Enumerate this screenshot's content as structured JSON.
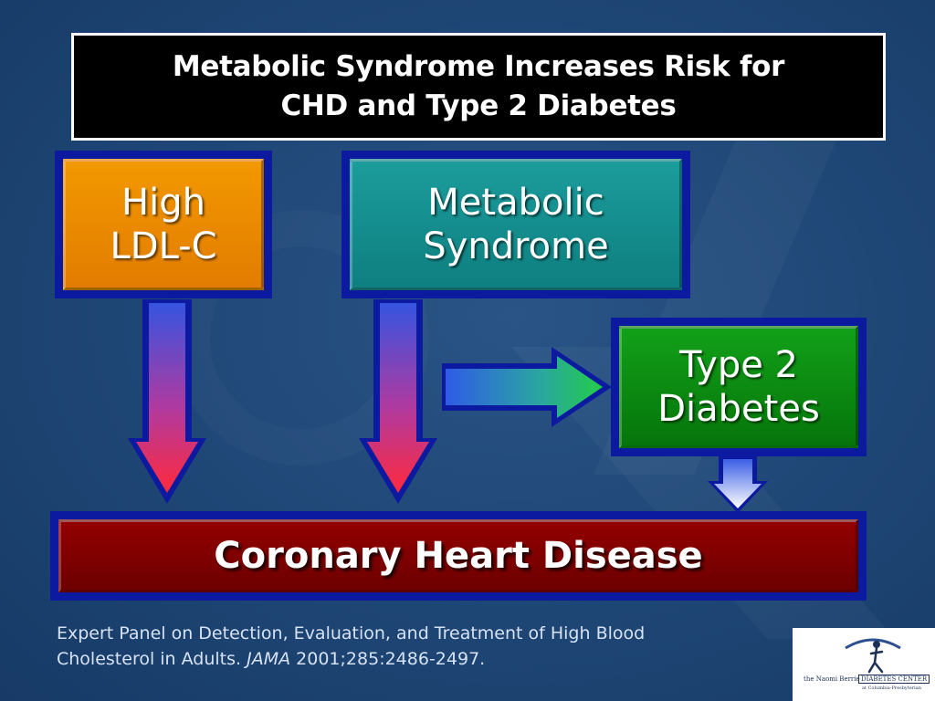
{
  "title": {
    "line1": "Metabolic Syndrome Increases Risk for",
    "line2": "CHD and Type 2 Diabetes"
  },
  "nodes": {
    "high_ldl": {
      "line1": "High",
      "line2": "LDL-C"
    },
    "metabolic_syndrome": {
      "line1": "Metabolic",
      "line2": "Syndrome"
    },
    "type2_diabetes": {
      "line1": "Type 2",
      "line2": "Diabetes"
    },
    "chd": {
      "label": "Coronary Heart Disease"
    }
  },
  "edges": [
    {
      "from": "High LDL-C",
      "to": "Coronary Heart Disease"
    },
    {
      "from": "Metabolic Syndrome",
      "to": "Coronary Heart Disease"
    },
    {
      "from": "Metabolic Syndrome",
      "to": "Type 2 Diabetes"
    },
    {
      "from": "Type 2 Diabetes",
      "to": "Coronary Heart Disease"
    }
  ],
  "citation": {
    "line1": "Expert Panel on Detection, Evaluation, and Treatment of High Blood",
    "line2_prefix": "Cholesterol in Adults.",
    "journal": "JAMA",
    "line2_suffix": "2001;285:2486-2497."
  },
  "logo": {
    "name_prefix": "the Naomi Berrie",
    "name": "DIABETES CENTER",
    "subtitle": "at Columbia-Presbyterian"
  },
  "colors": {
    "background": "#1e4675",
    "node_frame": "#0b1a9e",
    "high_ldl": "#f29800",
    "metabolic_syndrome": "#1c9c9c",
    "type2_diabetes": "#12a018",
    "chd": "#930000"
  }
}
